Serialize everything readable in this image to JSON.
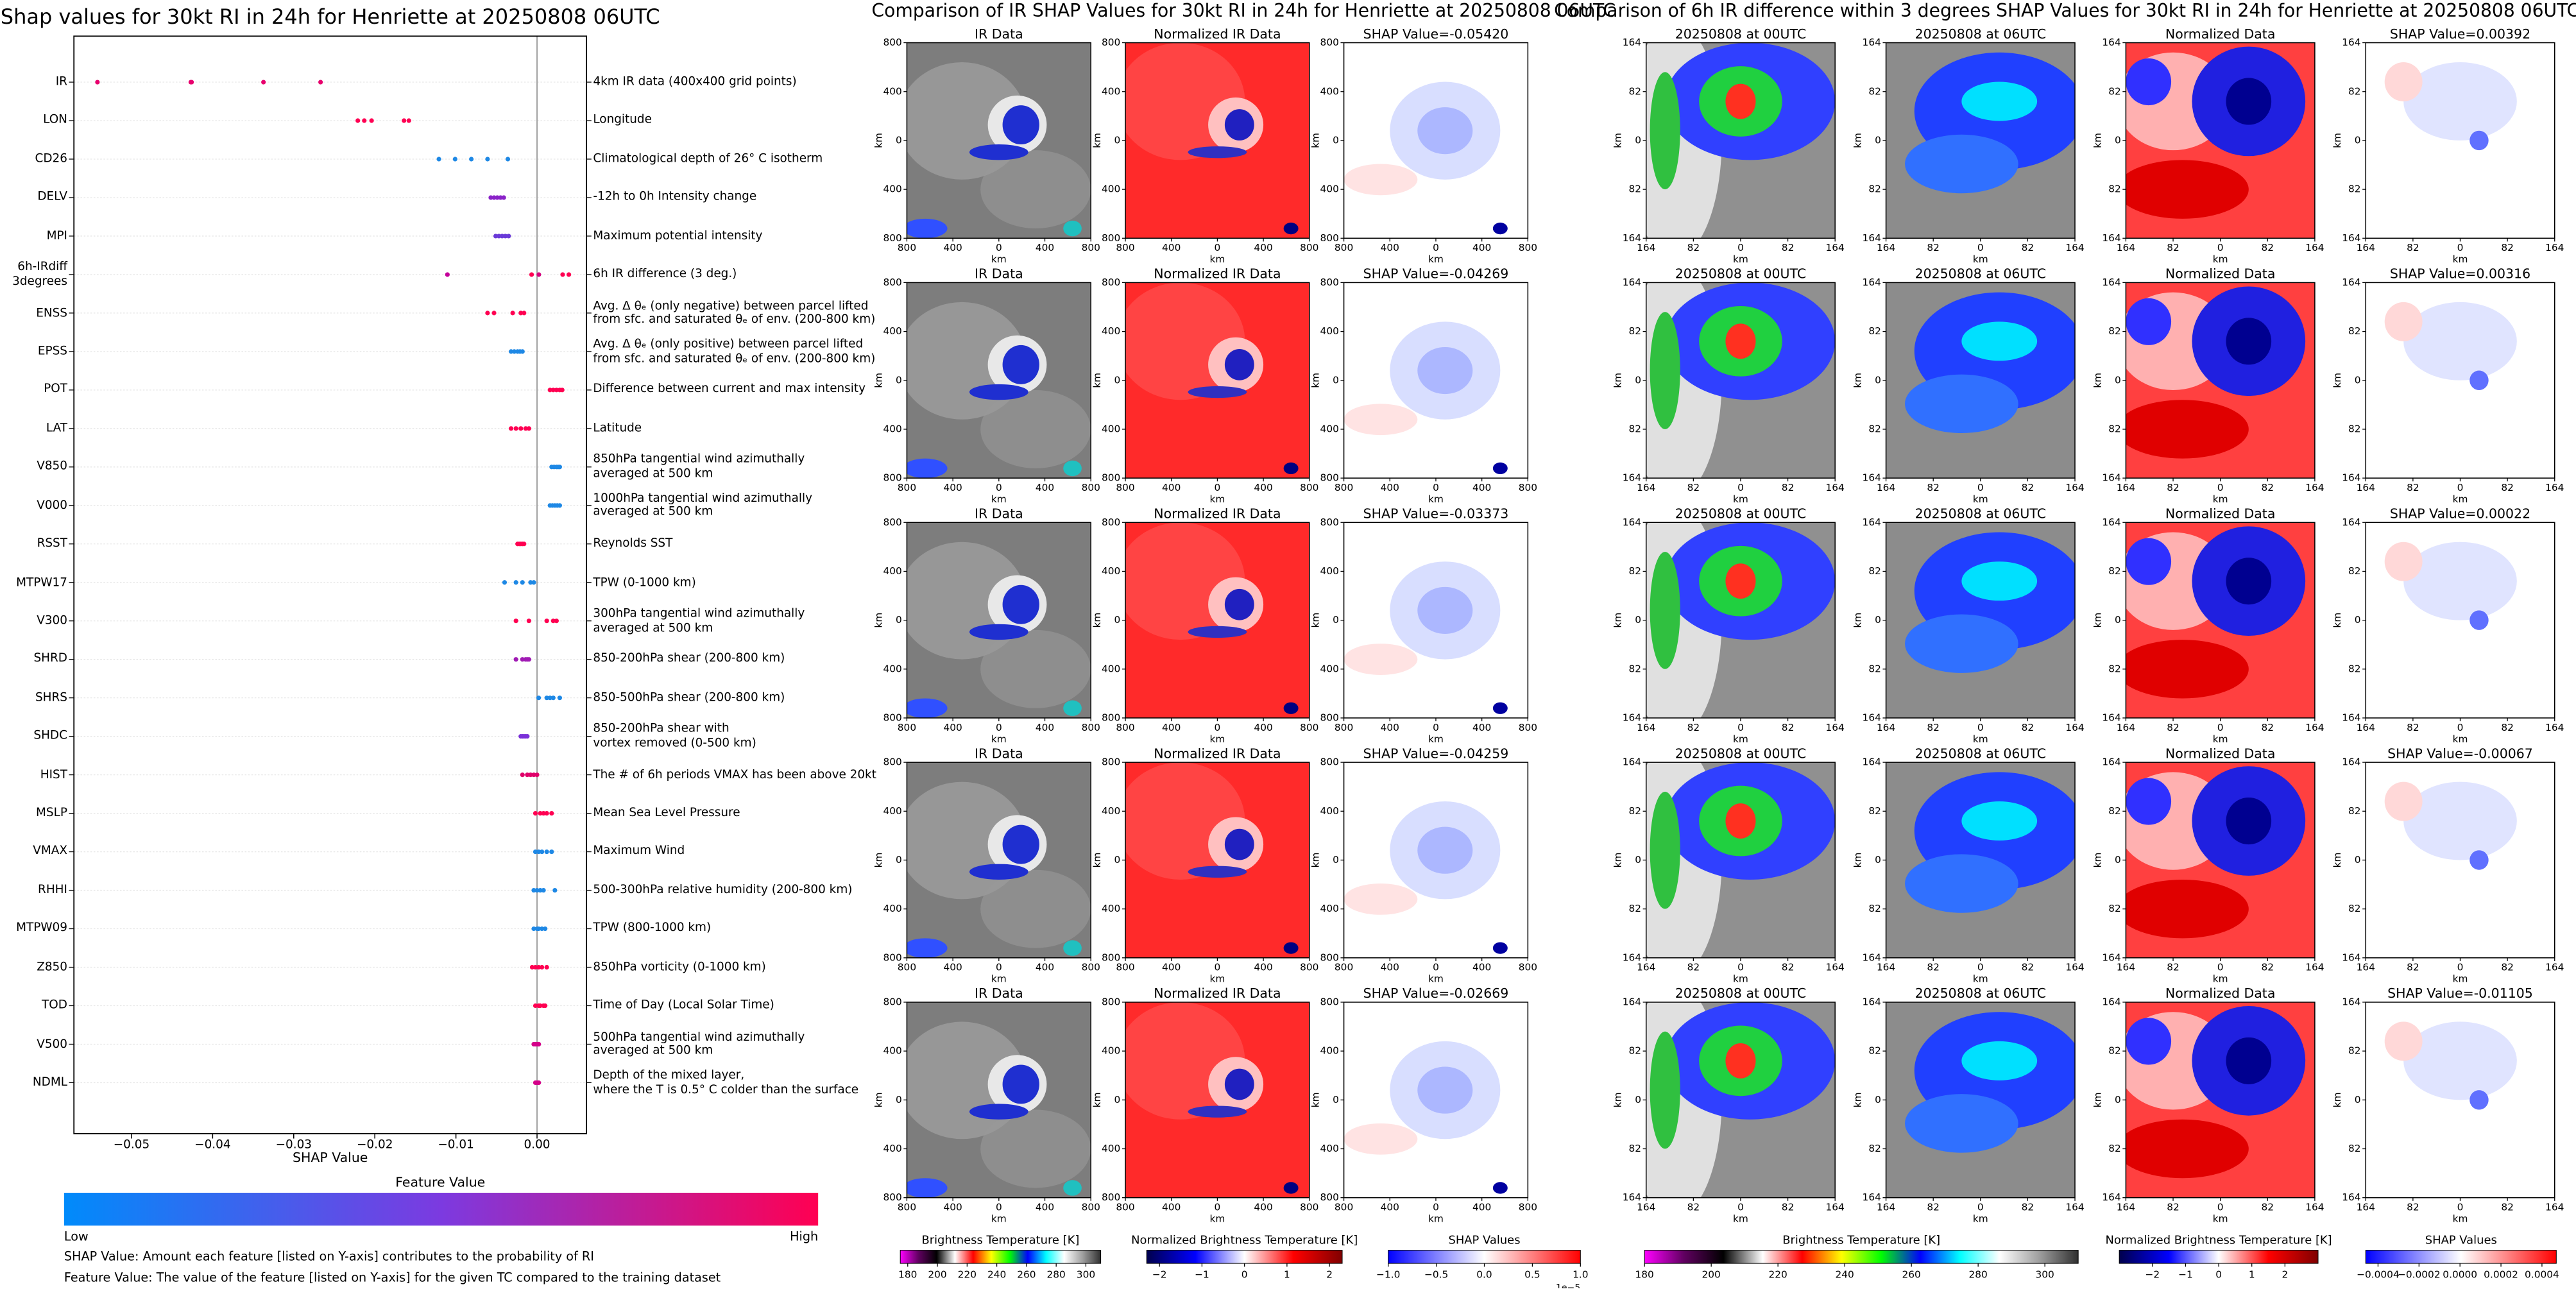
{
  "chart_data": [
    {
      "type": "beeswarm",
      "title": "Shap values for 30kt RI in 24h for Henriette at 20250808 06UTC",
      "xlabel": "SHAP Value",
      "categories": [
        "IR",
        "LON",
        "CD26",
        "DELV",
        "MPI",
        "6h-IRdiff\n3degrees",
        "ENSS",
        "EPSS",
        "POT",
        "LAT",
        "V850",
        "V000",
        "RSST",
        "MTPW17",
        "V300",
        "SHRD",
        "SHRS",
        "SHDC",
        "HIST",
        "MSLP",
        "VMAX",
        "RHHI",
        "MTPW09",
        "Z850",
        "TOD",
        "V500",
        "NDML"
      ],
      "descriptions": [
        "4km IR data (400x400 grid points)",
        "Longitude",
        "Climatological depth of 26° C isotherm",
        "-12h to 0h Intensity change",
        "Maximum potential intensity",
        "6h IR difference (3 deg.)",
        "Avg. Δ θₑ (only negative) between parcel lifted\nfrom sfc. and saturated θₑ of env. (200-800 km)",
        "Avg. Δ θₑ (only positive) between parcel lifted\nfrom sfc. and saturated θₑ of env. (200-800 km)",
        "Difference between current and max intensity",
        "Latitude",
        "850hPa tangential wind azimuthally\naveraged at 500 km",
        "1000hPa tangential wind azimuthally\naveraged at 500 km",
        "Reynolds SST",
        "TPW (0-1000 km)",
        "300hPa tangential wind azimuthally\naveraged at 500 km",
        "850-200hPa shear (200-800 km)",
        "850-500hPa shear (200-800 km)",
        "850-200hPa shear with\nvortex removed (0-500 km)",
        "The # of 6h periods VMAX has been above 20kt",
        "Mean Sea Level Pressure",
        "Maximum Wind",
        "500-300hPa relative humidity (200-800 km)",
        "TPW (800-1000 km)",
        "850hPa vorticity (0-1000 km)",
        "Time of Day (Local Solar Time)",
        "500hPa tangential wind azimuthally\naveraged at 500 km",
        "Depth of the mixed layer,\nwhere the T is 0.5° C colder than the surface"
      ],
      "values": [
        [
          -0.0542,
          -0.04269,
          -0.03373,
          -0.04259,
          -0.02669
        ],
        [
          -0.0221,
          -0.0213,
          -0.0204,
          -0.0164,
          -0.0158
        ],
        [
          -0.0121,
          -0.0101,
          -0.0081,
          -0.0061,
          -0.0036
        ],
        [
          -0.0057,
          -0.0053,
          -0.0049,
          -0.0045,
          -0.0041
        ],
        [
          -0.0051,
          -0.0047,
          -0.0043,
          -0.0039,
          -0.0035
        ],
        [
          0.00392,
          0.00316,
          0.00022,
          -0.00067,
          -0.01105
        ],
        [
          -0.0061,
          -0.0053,
          -0.003,
          -0.002,
          -0.0016
        ],
        [
          -0.0032,
          -0.0028,
          -0.0024,
          -0.0021,
          -0.0018
        ],
        [
          0.0016,
          0.002,
          0.0024,
          0.0028,
          0.0031
        ],
        [
          -0.0032,
          -0.0026,
          -0.002,
          -0.0014,
          -0.001
        ],
        [
          0.0018,
          0.0021,
          0.0024,
          0.0026,
          0.0028
        ],
        [
          0.0016,
          0.0019,
          0.0022,
          0.0025,
          0.0028
        ],
        [
          -0.0024,
          -0.0022,
          -0.002,
          -0.0018,
          -0.0016
        ],
        [
          -0.004,
          -0.0026,
          -0.0018,
          -0.0008,
          -0.0004
        ],
        [
          -0.0026,
          -0.001,
          0.0012,
          0.002,
          0.0024
        ],
        [
          -0.0026,
          -0.0018,
          -0.0014,
          -0.0012,
          -0.001
        ],
        [
          0.0002,
          0.0012,
          0.0016,
          0.002,
          0.0028
        ],
        [
          -0.002,
          -0.0018,
          -0.0016,
          -0.0014,
          -0.0012
        ],
        [
          -0.0018,
          -0.0012,
          -0.0008,
          -0.0004,
          0
        ],
        [
          -0.0002,
          0.0004,
          0.0008,
          0.0012,
          0.0018
        ],
        [
          -0.0002,
          0.0002,
          0.0006,
          0.0012,
          0.0018
        ],
        [
          -0.0004,
          0,
          0.0004,
          0.0008,
          0.0022
        ],
        [
          -0.0004,
          0,
          0.0002,
          0.0006,
          0.001
        ],
        [
          -0.0006,
          -0.0002,
          0.0002,
          0.0006,
          0.0012
        ],
        [
          -0.0002,
          0.0002,
          0.0004,
          0.0008,
          0.001
        ],
        [
          -0.0004,
          -0.0002,
          0,
          0.0002,
          0.0002
        ],
        [
          -0.0002,
          0,
          0,
          0.0002,
          0.0002
        ]
      ],
      "colors": [
        [
          "#e8006e",
          "#e8006e",
          "#e8006e",
          "#e8006e",
          "#e8006e"
        ],
        [
          "#ff0052",
          "#ff0052",
          "#ff0052",
          "#ff0052",
          "#ff0052"
        ],
        [
          "#1e88e5",
          "#1e88e5",
          "#1e88e5",
          "#1e88e5",
          "#1e88e5"
        ],
        [
          "#8a22c8",
          "#8a22c8",
          "#8a22c8",
          "#8a22c8",
          "#8a22c8"
        ],
        [
          "#6a3ad8",
          "#6a3ad8",
          "#6a3ad8",
          "#6a3ad8",
          "#6a3ad8"
        ],
        [
          "#ff0052",
          "#ff0052",
          "#d4007e",
          "#ff0052",
          "#c4009a"
        ],
        [
          "#ff0052",
          "#ff0052",
          "#ff0052",
          "#ff0052",
          "#ff0052"
        ],
        [
          "#1e88e5",
          "#1e88e5",
          "#1e88e5",
          "#1e88e5",
          "#1e88e5"
        ],
        [
          "#ff0052",
          "#ff0052",
          "#ff0052",
          "#ff0052",
          "#ff0052"
        ],
        [
          "#ff0052",
          "#ff0052",
          "#ff0052",
          "#ff0052",
          "#ff0052"
        ],
        [
          "#1e88e5",
          "#1e88e5",
          "#1e88e5",
          "#1e88e5",
          "#1e88e5"
        ],
        [
          "#1e88e5",
          "#1e88e5",
          "#1e88e5",
          "#1e88e5",
          "#1e88e5"
        ],
        [
          "#ff0052",
          "#ff0052",
          "#ff0052",
          "#ff0052",
          "#ff0052"
        ],
        [
          "#1e88e5",
          "#1e88e5",
          "#1e88e5",
          "#1e88e5",
          "#1e88e5"
        ],
        [
          "#ff0052",
          "#ff0052",
          "#ff0052",
          "#ff0052",
          "#ff0052"
        ],
        [
          "#a01ab4",
          "#a01ab4",
          "#a01ab4",
          "#a01ab4",
          "#a01ab4"
        ],
        [
          "#1e88e5",
          "#1e88e5",
          "#1e88e5",
          "#1e88e5",
          "#1e88e5"
        ],
        [
          "#7a30d8",
          "#7a30d8",
          "#7a30d8",
          "#7a30d8",
          "#7a30d8"
        ],
        [
          "#e0006a",
          "#e0006a",
          "#e0006a",
          "#e0006a",
          "#e0006a"
        ],
        [
          "#ff0052",
          "#ff0052",
          "#ff0052",
          "#ff0052",
          "#ff0052"
        ],
        [
          "#1e88e5",
          "#1e88e5",
          "#1e88e5",
          "#1e88e5",
          "#1e88e5"
        ],
        [
          "#1e88e5",
          "#1e88e5",
          "#1e88e5",
          "#1e88e5",
          "#1e88e5"
        ],
        [
          "#1e88e5",
          "#1e88e5",
          "#1e88e5",
          "#1e88e5",
          "#1e88e5"
        ],
        [
          "#ff0052",
          "#ff0052",
          "#ff0052",
          "#ff0052",
          "#ff0052"
        ],
        [
          "#ff0052",
          "#ff0052",
          "#ff0052",
          "#ff0052",
          "#ff0052"
        ],
        [
          "#d4008a",
          "#d4008a",
          "#d4008a",
          "#d4008a",
          "#d4008a"
        ],
        [
          "#d4008a",
          "#d4008a",
          "#d4008a",
          "#d4008a",
          "#d4008a"
        ]
      ],
      "xlim": [
        -0.0571,
        0.0061
      ],
      "xticks": [
        {
          "value": -0.05,
          "label": "−0.05"
        },
        {
          "value": -0.04,
          "label": "−0.04"
        },
        {
          "value": -0.03,
          "label": "−0.03"
        },
        {
          "value": -0.02,
          "label": "−0.02"
        },
        {
          "value": -0.01,
          "label": "−0.01"
        },
        {
          "value": 0,
          "label": "0.00"
        }
      ],
      "colorbar": {
        "label": "Feature Value",
        "low": "Low",
        "high": "High",
        "colors": [
          "#008bfb",
          "#7c3ae0",
          "#ff0052"
        ]
      },
      "notes": [
        "SHAP Value: Amount each feature [listed on Y-axis] contributes to the probability of RI",
        "Feature Value: The value of the feature [listed on Y-axis] for the given TC compared to the training dataset"
      ]
    },
    {
      "type": "image_grid",
      "title": "Comparison of IR SHAP Values for 30kt RI in 24h for Henriette at 20250808 06UTC",
      "panel_titles": [
        [
          "IR Data",
          "Normalized IR Data",
          "SHAP Value=-0.05420"
        ],
        [
          "IR Data",
          "Normalized IR Data",
          "SHAP Value=-0.04269"
        ],
        [
          "IR Data",
          "Normalized IR Data",
          "SHAP Value=-0.03373"
        ],
        [
          "IR Data",
          "Normalized IR Data",
          "SHAP Value=-0.04259"
        ],
        [
          "IR Data",
          "Normalized IR Data",
          "SHAP Value=-0.02669"
        ]
      ],
      "xlabel": "km",
      "ylabel": "km",
      "xlim": [
        -800,
        800
      ],
      "ylim": [
        -800,
        800
      ],
      "xticks": [
        {
          "value": -800,
          "label": "800"
        },
        {
          "value": -400,
          "label": "400"
        },
        0,
        400,
        800
      ],
      "yticks": [
        800,
        400,
        0,
        {
          "value": -400,
          "label": "400"
        },
        {
          "value": -800,
          "label": "800"
        }
      ],
      "colorbars": [
        {
          "label": "Brightness Temperature [K]",
          "lim": [
            175,
            310
          ],
          "ticks": [
            180,
            200,
            220,
            240,
            260,
            280,
            300
          ],
          "colors": [
            "#ff00ff",
            "#600060",
            "#000000",
            "#ffffff",
            "#ff0000",
            "#ffff00",
            "#00ff00",
            "#0000ff",
            "#00ffff",
            "#ffffff",
            "#a0a0a0",
            "#303030"
          ]
        },
        {
          "label": "Normalized Brightness Temperature [K]",
          "lim": [
            -2.3,
            2.3
          ],
          "ticks": [
            {
              "value": -2,
              "label": "−2"
            },
            {
              "value": -1,
              "label": "−1"
            },
            0,
            1,
            2
          ],
          "colors": [
            "#00004c",
            "#0000ff",
            "#ffffff",
            "#ff0000",
            "#800000"
          ]
        },
        {
          "label": "SHAP Values",
          "lim": [
            -1,
            1
          ],
          "ticks": [
            {
              "value": -1,
              "label": "−1.0"
            },
            {
              "value": -0.5,
              "label": "−0.5"
            },
            {
              "value": 0,
              "label": "0.0"
            },
            0.5,
            {
              "value": 1,
              "label": "1.0"
            }
          ],
          "offset_label": "1e−5",
          "colors": [
            "#0000ff",
            "#ffffff",
            "#ff0000"
          ]
        }
      ]
    },
    {
      "type": "image_grid",
      "title": "Comparison of 6h IR difference within 3 degrees SHAP Values for 30kt RI in 24h for Henriette at 20250808 06UTC",
      "panel_titles": [
        [
          "20250808 at 00UTC",
          "20250808 at 06UTC",
          "Normalized Data",
          "SHAP Value=0.00392"
        ],
        [
          "20250808 at 00UTC",
          "20250808 at 06UTC",
          "Normalized Data",
          "SHAP Value=0.00316"
        ],
        [
          "20250808 at 00UTC",
          "20250808 at 06UTC",
          "Normalized Data",
          "SHAP Value=0.00022"
        ],
        [
          "20250808 at 00UTC",
          "20250808 at 06UTC",
          "Normalized Data",
          "SHAP Value=-0.00067"
        ],
        [
          "20250808 at 00UTC",
          "20250808 at 06UTC",
          "Normalized Data",
          "SHAP Value=-0.01105"
        ]
      ],
      "xlabel": "km",
      "ylabel": "km",
      "xlim": [
        -164,
        164
      ],
      "ylim": [
        -164,
        164
      ],
      "xticks": [
        {
          "value": -164,
          "label": "164"
        },
        {
          "value": -82,
          "label": "82"
        },
        0,
        82,
        164
      ],
      "yticks": [
        164,
        82,
        0,
        {
          "value": -82,
          "label": "82"
        },
        {
          "value": -164,
          "label": "164"
        }
      ],
      "colorbars": [
        {
          "label": "Brightness Temperature [K]",
          "lim": [
            180,
            310
          ],
          "ticks": [
            180,
            200,
            220,
            240,
            260,
            280,
            300
          ],
          "colors": [
            "#ff00ff",
            "#600060",
            "#000000",
            "#ffffff",
            "#ff0000",
            "#ffff00",
            "#00ff00",
            "#0000ff",
            "#00ffff",
            "#ffffff",
            "#a0a0a0",
            "#303030"
          ]
        },
        {
          "label": "Normalized Brightness Temperature [K]",
          "lim": [
            -3,
            3
          ],
          "ticks": [
            {
              "value": -2,
              "label": "−2"
            },
            {
              "value": -1,
              "label": "−1"
            },
            0,
            1,
            2
          ],
          "colors": [
            "#00004c",
            "#0000ff",
            "#ffffff",
            "#ff0000",
            "#800000"
          ]
        },
        {
          "label": "SHAP Values",
          "lim": [
            -0.00046,
            0.00047
          ],
          "ticks": [
            {
              "value": -0.0004,
              "label": "−0.0004"
            },
            {
              "value": -0.0002,
              "label": "−0.0002"
            },
            {
              "value": 0,
              "label": "0.0000"
            },
            {
              "value": 0.0002,
              "label": "0.0002"
            },
            {
              "value": 0.0004,
              "label": "0.0004"
            }
          ],
          "colors": [
            "#0000ff",
            "#ffffff",
            "#ff0000"
          ]
        }
      ]
    }
  ]
}
